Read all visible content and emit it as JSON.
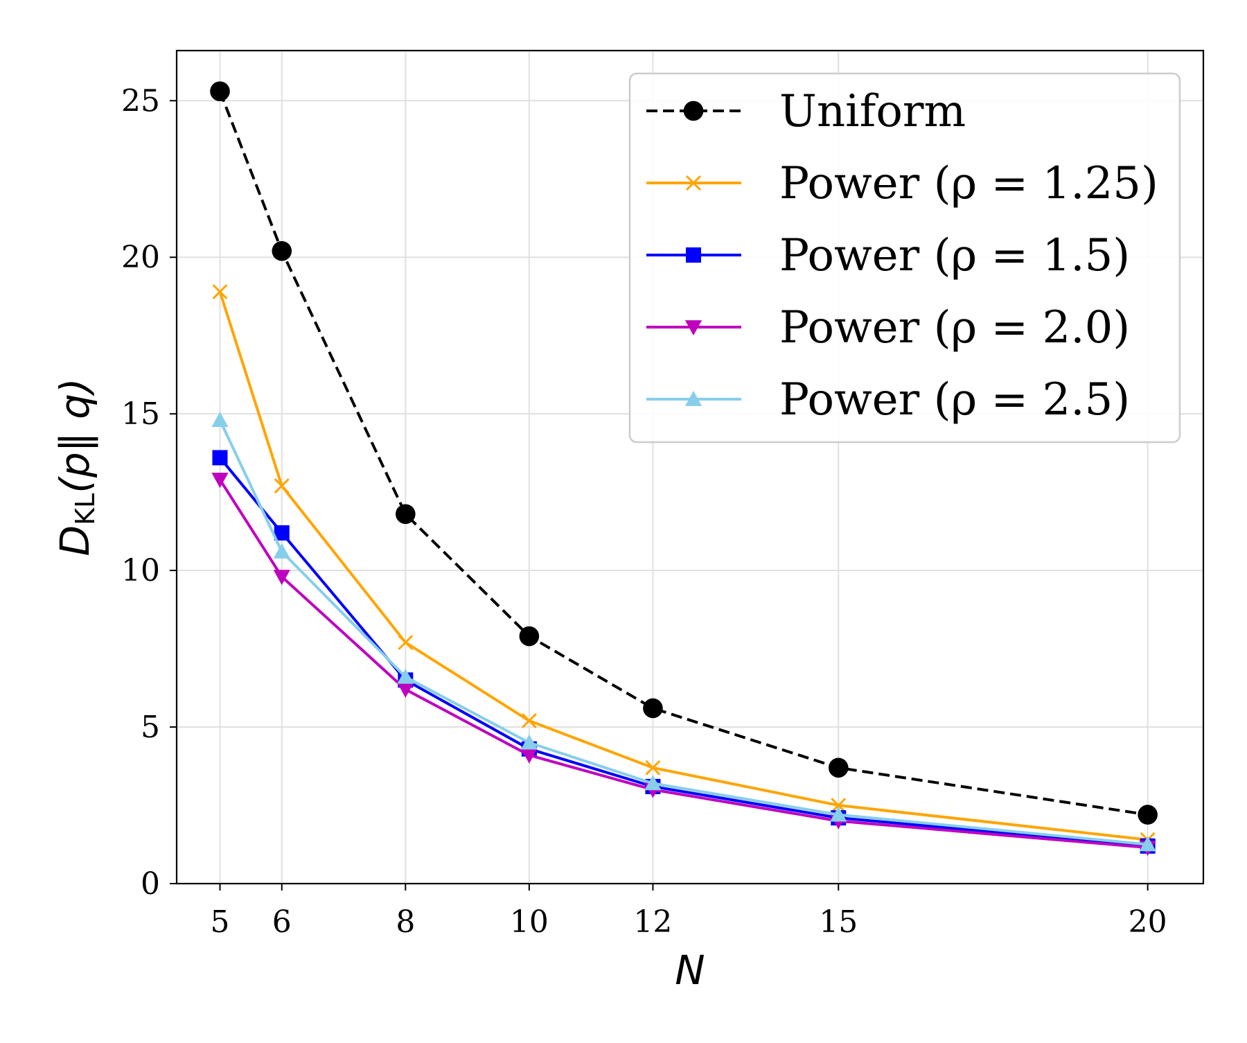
{
  "chart_data": {
    "type": "line",
    "xlabel": "N",
    "ylabel": "D_KL(p‖ q)",
    "ylabel_parts": {
      "main": "D",
      "sub": "KL",
      "rest": "(p‖ q)"
    },
    "x": [
      5,
      6,
      8,
      10,
      12,
      15,
      20
    ],
    "x_ticks": [
      5,
      6,
      8,
      10,
      12,
      15,
      20
    ],
    "y_ticks": [
      0,
      5,
      10,
      15,
      20,
      25
    ],
    "xlim": [
      4.3,
      20.9
    ],
    "ylim": [
      0,
      26.6
    ],
    "grid": true,
    "legend_position": "top-right",
    "series": [
      {
        "name": "Uniform",
        "values": [
          25.3,
          20.2,
          11.8,
          7.9,
          5.6,
          3.7,
          2.2
        ],
        "color": "#000000",
        "marker": "circle",
        "line_style": "dashed"
      },
      {
        "name": "Power (ρ = 1.25)",
        "values": [
          18.9,
          12.7,
          7.7,
          5.2,
          3.7,
          2.5,
          1.4
        ],
        "color": "#ffa500",
        "marker": "x",
        "line_style": "solid"
      },
      {
        "name": "Power (ρ = 1.5)",
        "values": [
          13.6,
          11.2,
          6.5,
          4.3,
          3.1,
          2.1,
          1.2
        ],
        "color": "#0000ff",
        "marker": "square",
        "line_style": "solid"
      },
      {
        "name": "Power (ρ = 2.0)",
        "values": [
          12.9,
          9.8,
          6.2,
          4.1,
          3.0,
          2.0,
          1.15
        ],
        "color": "#bf00bf",
        "marker": "triangle-down",
        "line_style": "solid"
      },
      {
        "name": "Power (ρ = 2.5)",
        "values": [
          14.8,
          10.6,
          6.6,
          4.5,
          3.2,
          2.2,
          1.25
        ],
        "color": "#87ceeb",
        "marker": "triangle-up",
        "line_style": "solid"
      }
    ]
  }
}
